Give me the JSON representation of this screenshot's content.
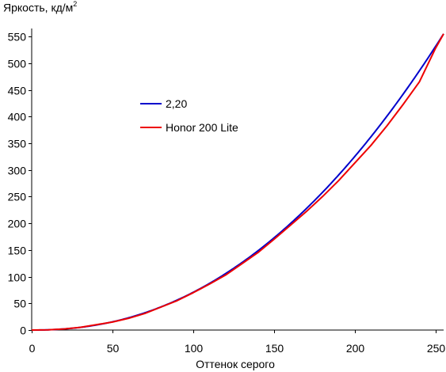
{
  "chart_data": {
    "type": "line",
    "ylabel_main": "Яркость, кд/м",
    "ylabel_sup": "2",
    "xlabel": "Оттенок серого",
    "xlim": [
      0,
      255
    ],
    "ylim": [
      0,
      565
    ],
    "xticks": [
      0,
      50,
      100,
      150,
      200,
      250
    ],
    "yticks": [
      0,
      50,
      100,
      150,
      200,
      250,
      300,
      350,
      400,
      450,
      500,
      550
    ],
    "grid": false,
    "legend_position": "upper-left",
    "series": [
      {
        "name": "2,20",
        "color": "#0000cc",
        "gamma": 2.2,
        "ymax": 555,
        "xmax": 255
      },
      {
        "name": "Honor 200 Lite",
        "color": "#ee0000",
        "x": [
          0,
          10,
          20,
          30,
          40,
          50,
          60,
          70,
          80,
          90,
          100,
          110,
          120,
          130,
          140,
          150,
          160,
          170,
          180,
          190,
          200,
          210,
          220,
          230,
          240,
          250,
          255
        ],
        "y": [
          0,
          0.3,
          2,
          5,
          10,
          15,
          22,
          31,
          43,
          55,
          70,
          86,
          103,
          124,
          145,
          170,
          196,
          222,
          250,
          280,
          313,
          346,
          383,
          423,
          465,
          528,
          555
        ]
      }
    ]
  }
}
